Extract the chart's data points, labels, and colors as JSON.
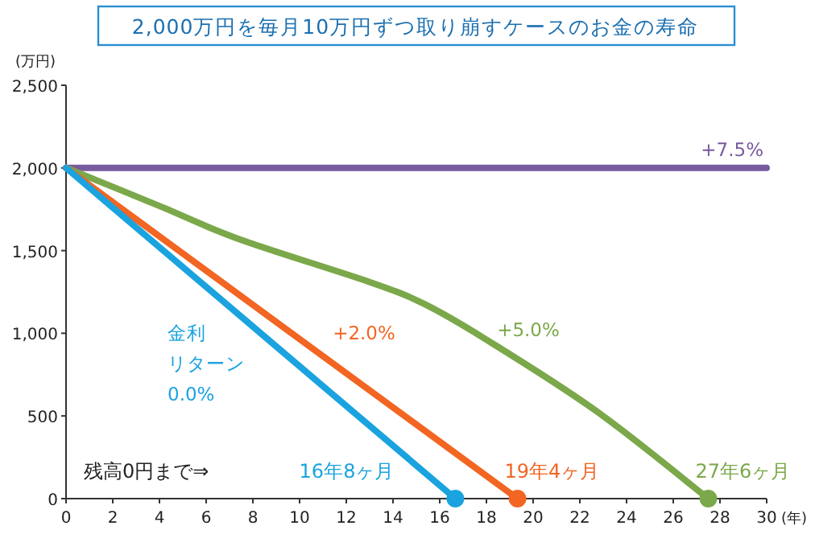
{
  "chart_data": {
    "type": "line",
    "title": "2,000万円を毎月10万円ずつ取り崩すケースのお金の寿命",
    "xlabel": "(年)",
    "ylabel": "(万円)",
    "xlim": [
      0,
      30
    ],
    "xticks": [
      0,
      2,
      4,
      6,
      8,
      10,
      12,
      14,
      16,
      18,
      20,
      22,
      24,
      26,
      28,
      30
    ],
    "ylim": [
      0,
      2500
    ],
    "yticks": [
      0,
      500,
      {
        "value": 1000,
        "label": "1,000"
      },
      {
        "value": 1500,
        "label": "1,500"
      },
      {
        "value": 2000,
        "label": "2,000"
      },
      {
        "value": 2500,
        "label": "2,500"
      }
    ],
    "grid": false,
    "legend": false,
    "line_style": "solid",
    "series": [
      {
        "name": "+7.5%",
        "color": "#7a5a9e",
        "x": [
          0,
          30
        ],
        "values": [
          2000,
          2000
        ]
      },
      {
        "name": "+5.0%",
        "color": "#7ba84a",
        "x": [
          0,
          4,
          7.4,
          13,
          15.3,
          17.9,
          22.7,
          27.5
        ],
        "values": [
          2000,
          1770,
          1570,
          1310,
          1180,
          970,
          530,
          0
        ]
      },
      {
        "name": "+2.0%",
        "color": "#f26522",
        "x": [
          0,
          19.33
        ],
        "values": [
          2000,
          0
        ]
      },
      {
        "name": "金利リターン 0.0%",
        "color": "#1aa3df",
        "x": [
          0,
          16.67
        ],
        "values": [
          2000,
          0
        ]
      },
      {
        "type": "scatter",
        "marker": "circle",
        "x": [
          16.67,
          19.33,
          27.5
        ],
        "values": [
          0,
          0,
          0
        ],
        "colors": [
          "#1aa3df",
          "#f26522",
          "#7ba84a"
        ]
      }
    ],
    "annotations": [
      "残高0円まで⇒",
      "16年8ヶ月",
      "19年4ヶ月",
      "27年6ヶ月"
    ]
  }
}
